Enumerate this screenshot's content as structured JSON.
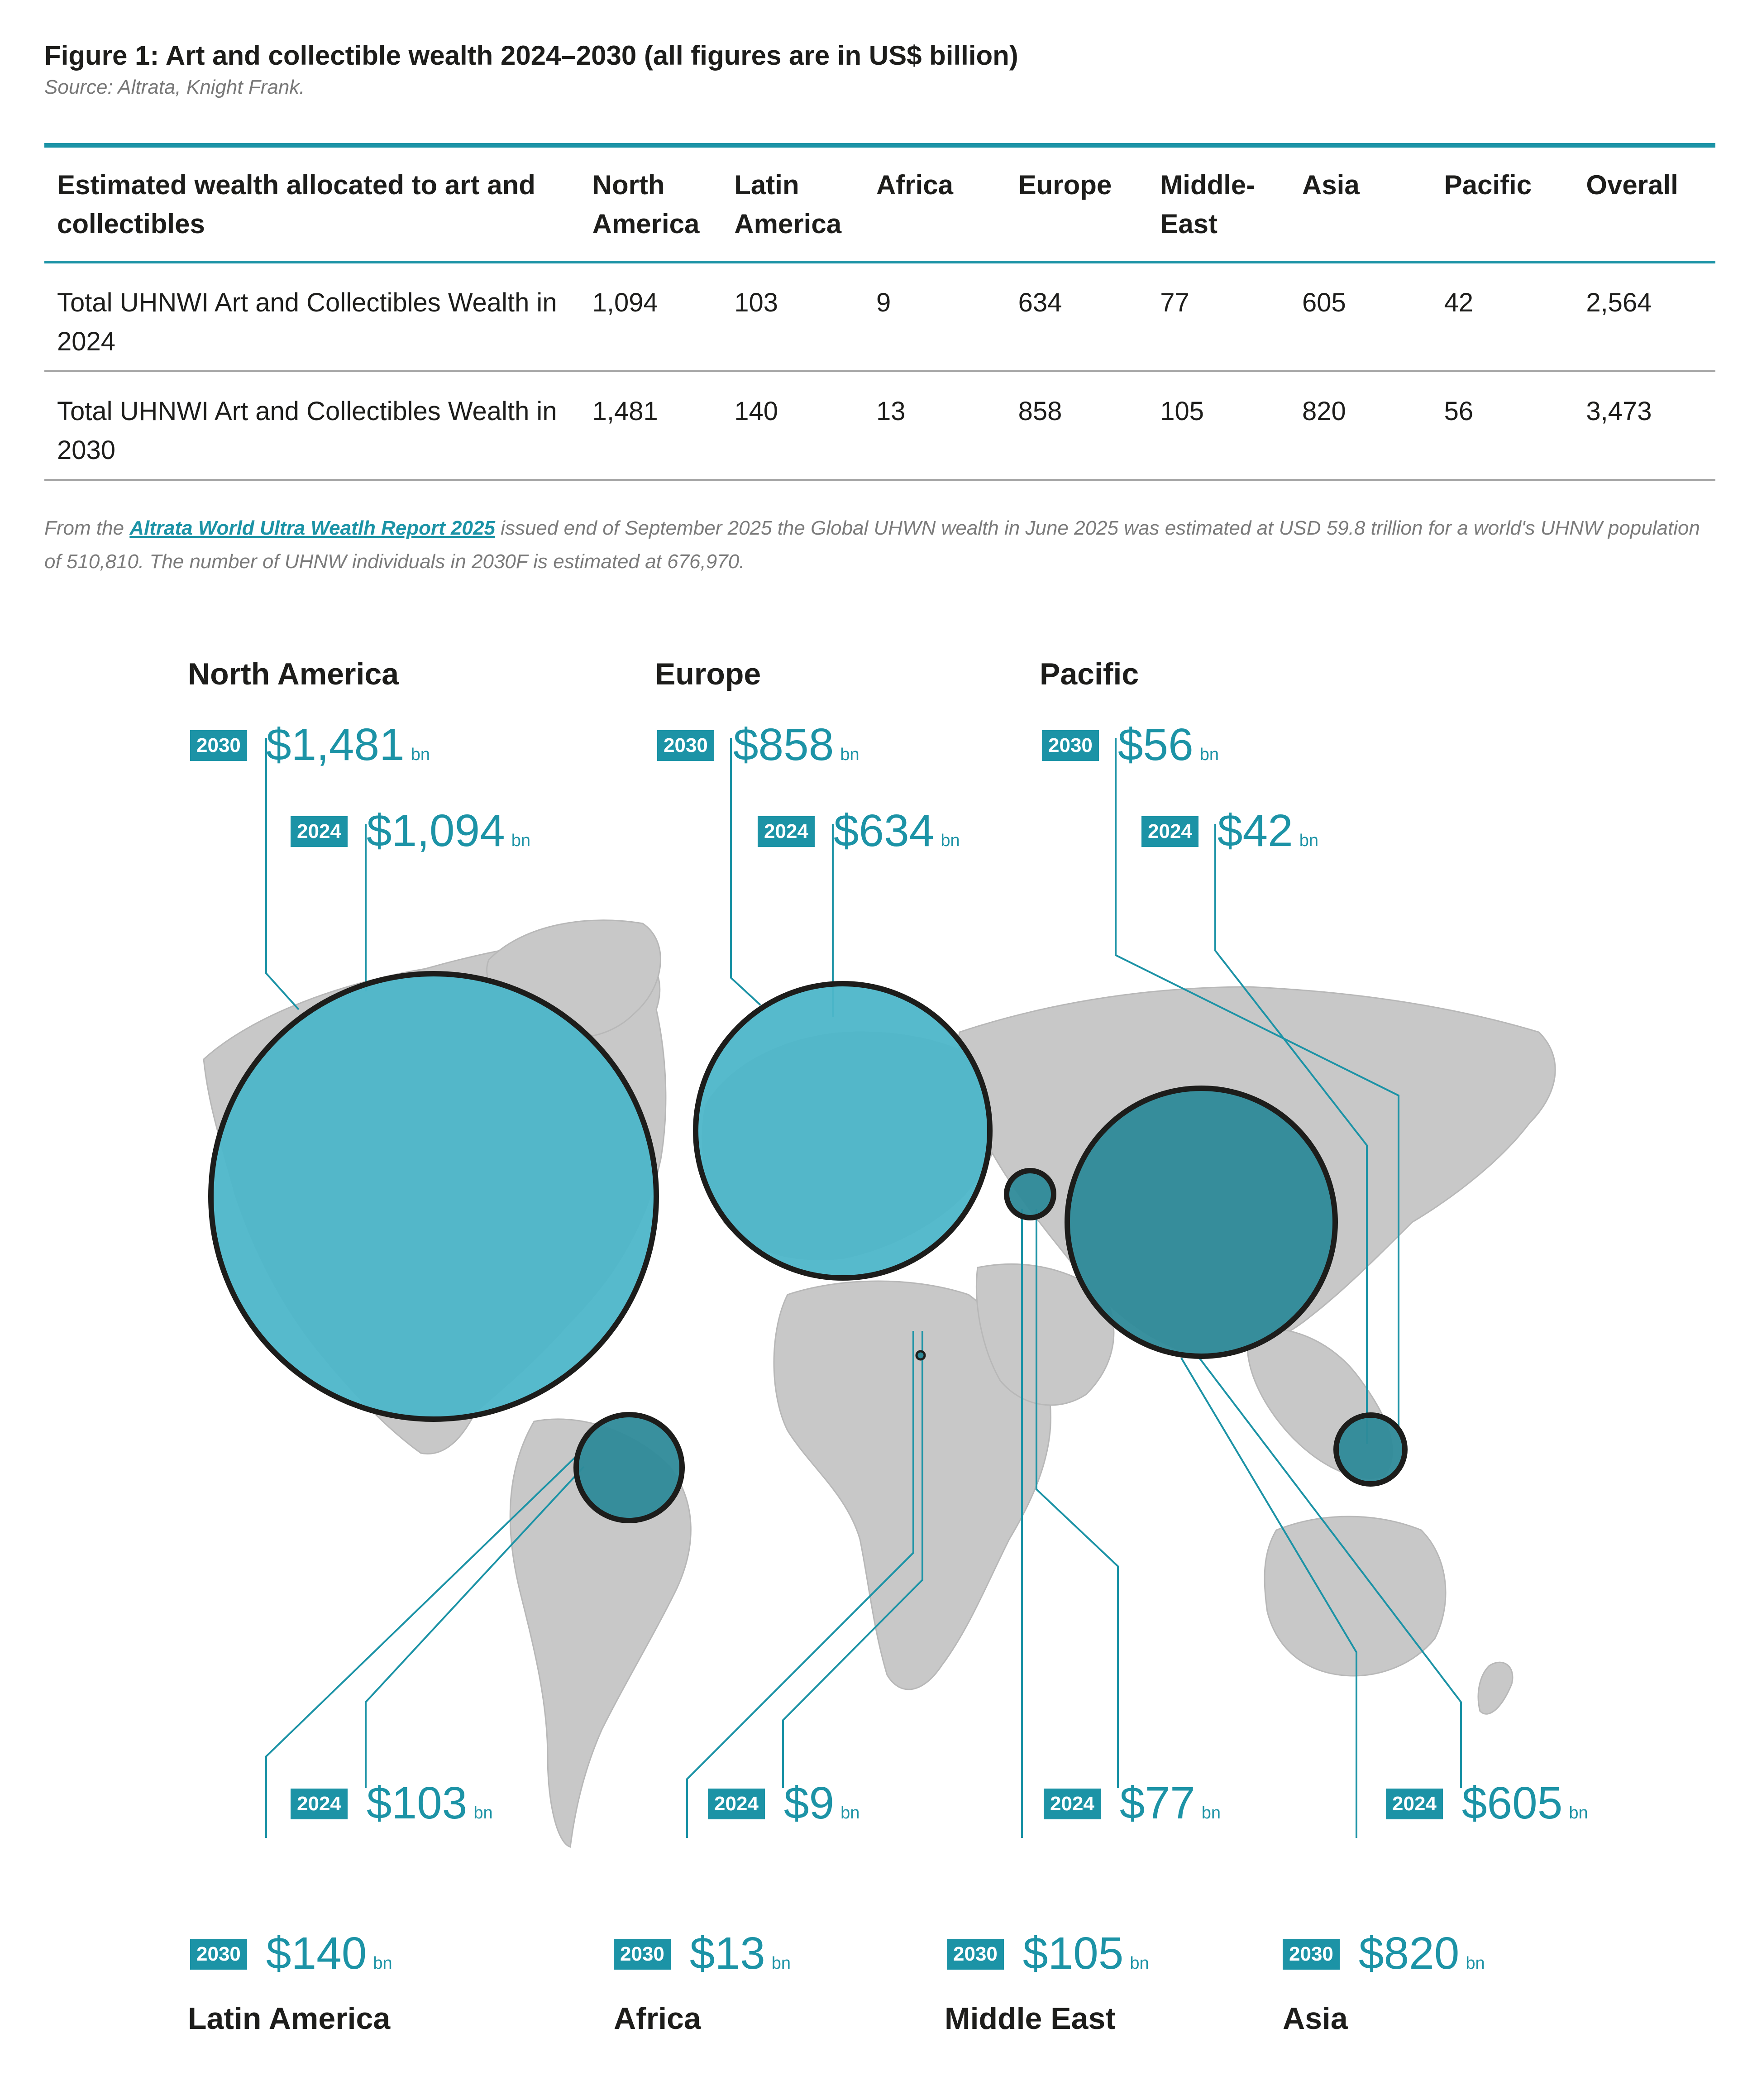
{
  "figure": {
    "title": "Figure 1: Art and collectible wealth 2024–2030 (all figures are in US$ billion)",
    "source": "Source: Altrata, Knight Frank."
  },
  "table": {
    "headers": [
      "Estimated wealth allocated to art and collectibles",
      "North America",
      "Latin America",
      "Africa",
      "Europe",
      "Middle-East",
      "Asia",
      "Pacific",
      "Overall"
    ],
    "rows": [
      [
        "Total UHNWI Art and Collectibles Wealth in 2024",
        "1,094",
        "103",
        "9",
        "634",
        "77",
        "605",
        "42",
        "2,564"
      ],
      [
        "Total UHNWI Art and Collectibles Wealth in 2030",
        "1,481",
        "140",
        "13",
        "858",
        "105",
        "820",
        "56",
        "3,473"
      ]
    ]
  },
  "note": {
    "prefix": "From the ",
    "link": "Altrata World Ultra Weatlh Report 2025",
    "suffix": " issued end of September 2025 the Global UHWN wealth in June 2025 was estimated at USD 59.8 trillion for a world's UHNW population of 510,810. The number of UHNW individuals in 2030F is estimated at 676,970."
  },
  "map": {
    "unit": "bn",
    "year_2024": "2024",
    "year_2030": "2030",
    "regions": [
      {
        "name": "North America",
        "v2024": "$1,094",
        "v2030": "$1,481"
      },
      {
        "name": "Europe",
        "v2024": "$634",
        "v2030": "$858"
      },
      {
        "name": "Pacific",
        "v2024": "$42",
        "v2030": "$56"
      },
      {
        "name": "Latin America",
        "v2024": "$103",
        "v2030": "$140"
      },
      {
        "name": "Africa",
        "v2024": "$9",
        "v2030": "$13"
      },
      {
        "name": "Middle East",
        "v2024": "$77",
        "v2030": "$105"
      },
      {
        "name": "Asia",
        "v2024": "$605",
        "v2030": "$820"
      }
    ]
  },
  "colors": {
    "accent": "#1c93a6",
    "bubble_fill": "#4db6c9",
    "bubble_dark": "#2e8a99",
    "land": "#c8c8c8"
  }
}
